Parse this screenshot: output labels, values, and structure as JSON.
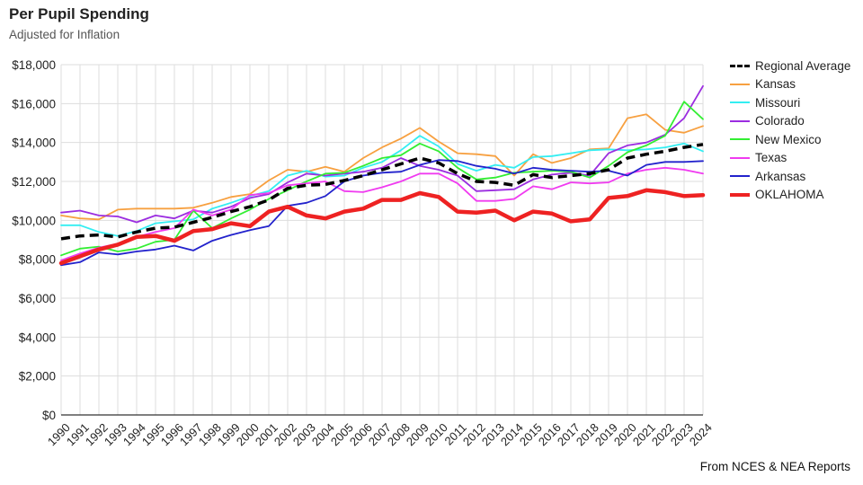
{
  "title": "Per Pupil Spending",
  "subtitle": "Adjusted for Inflation",
  "source": "From NCES & NEA Reports",
  "chart_data": {
    "type": "line",
    "x": [
      "1990",
      "1991",
      "1992",
      "1993",
      "1994",
      "1995",
      "1996",
      "1997",
      "1998",
      "1999",
      "2000",
      "2001",
      "2002",
      "2003",
      "2004",
      "2005",
      "2006",
      "2007",
      "2008",
      "2009",
      "2010",
      "2011",
      "2012",
      "2013",
      "2014",
      "2015",
      "2016",
      "2017",
      "2018",
      "2019",
      "2020",
      "2021",
      "2022",
      "2023",
      "2024"
    ],
    "ylim": [
      0,
      18000
    ],
    "yticks": [
      0,
      2000,
      4000,
      6000,
      8000,
      10000,
      12000,
      14000,
      16000,
      18000
    ],
    "ytick_labels": [
      "$0",
      "$2,000",
      "$4,000",
      "$6,000",
      "$8,000",
      "$10,000",
      "$12,000",
      "$14,000",
      "$16,000",
      "$18,000"
    ],
    "grid": true,
    "legend_position": "right",
    "series": [
      {
        "name": "Regional Average",
        "color": "#000000",
        "dashed": true,
        "width": 3.5,
        "values": [
          9050,
          9200,
          9250,
          9150,
          9400,
          9600,
          9650,
          9900,
          10150,
          10450,
          10700,
          11050,
          11650,
          11800,
          11850,
          12050,
          12300,
          12600,
          12900,
          13200,
          12950,
          12400,
          12000,
          11950,
          11800,
          12350,
          12200,
          12300,
          12400,
          12600,
          13200,
          13400,
          13550,
          13750,
          13900
        ]
      },
      {
        "name": "Kansas",
        "color": "#f7a040",
        "width": 1.8,
        "values": [
          10250,
          10100,
          10050,
          10550,
          10600,
          10600,
          10600,
          10650,
          10900,
          11200,
          11350,
          12050,
          12600,
          12500,
          12750,
          12500,
          13200,
          13750,
          14200,
          14750,
          14050,
          13450,
          13400,
          13300,
          12300,
          13400,
          12950,
          13200,
          13650,
          13700,
          15250,
          15450,
          14650,
          14500,
          14850
        ]
      },
      {
        "name": "Missouri",
        "color": "#33eef2",
        "width": 1.8,
        "values": [
          9750,
          9750,
          9400,
          9200,
          9450,
          9850,
          9950,
          10050,
          10600,
          10900,
          11250,
          11500,
          12300,
          12550,
          12250,
          12300,
          12700,
          13000,
          13600,
          14350,
          13800,
          12900,
          12550,
          12850,
          12700,
          13250,
          13300,
          13450,
          13600,
          13650,
          13600,
          13650,
          13750,
          13950,
          13550
        ]
      },
      {
        "name": "Colorado",
        "color": "#9b2de0",
        "width": 1.8,
        "values": [
          10400,
          10500,
          10250,
          10200,
          9900,
          10250,
          10100,
          10500,
          10400,
          10700,
          11150,
          11350,
          11950,
          12400,
          12300,
          12400,
          12500,
          12700,
          13200,
          12800,
          12600,
          12300,
          11500,
          11550,
          11600,
          12100,
          12350,
          12450,
          12300,
          13450,
          13850,
          14000,
          14400,
          15250,
          16900
        ]
      },
      {
        "name": "New Mexico",
        "color": "#33ee33",
        "width": 1.8,
        "values": [
          8200,
          8550,
          8650,
          8400,
          8550,
          8900,
          9000,
          10500,
          9600,
          10100,
          10550,
          11100,
          11550,
          12000,
          12400,
          12450,
          12800,
          13200,
          13350,
          13950,
          13550,
          12700,
          12100,
          12200,
          12450,
          12500,
          12550,
          12500,
          12200,
          12800,
          13500,
          13850,
          14350,
          16100,
          15200
        ]
      },
      {
        "name": "Texas",
        "color": "#f03bf0",
        "width": 1.8,
        "values": [
          7950,
          8300,
          8600,
          8800,
          9150,
          9400,
          9600,
          10550,
          10250,
          10550,
          11300,
          11400,
          11800,
          11900,
          12000,
          11500,
          11450,
          11700,
          12000,
          12400,
          12400,
          11900,
          11000,
          11000,
          11100,
          11750,
          11600,
          11950,
          11900,
          11950,
          12400,
          12600,
          12700,
          12600,
          12400
        ]
      },
      {
        "name": "Arkansas",
        "color": "#2222cc",
        "width": 1.8,
        "values": [
          7700,
          7850,
          8350,
          8250,
          8400,
          8500,
          8700,
          8450,
          8950,
          9250,
          9500,
          9700,
          10750,
          10900,
          11250,
          12000,
          12300,
          12450,
          12500,
          12850,
          13100,
          13050,
          12800,
          12650,
          12400,
          12700,
          12600,
          12550,
          12500,
          12550,
          12300,
          12850,
          13000,
          13000,
          13050
        ]
      },
      {
        "name": "OKLAHOMA",
        "color": "#ee2222",
        "width": 4.5,
        "values": [
          7800,
          8150,
          8500,
          8750,
          9150,
          9200,
          8950,
          9450,
          9550,
          9850,
          9700,
          10450,
          10700,
          10250,
          10100,
          10450,
          10600,
          11050,
          11050,
          11400,
          11200,
          10450,
          10400,
          10500,
          10000,
          10450,
          10350,
          9950,
          10050,
          11150,
          11250,
          11550,
          11450,
          11250,
          11300
        ]
      }
    ]
  }
}
